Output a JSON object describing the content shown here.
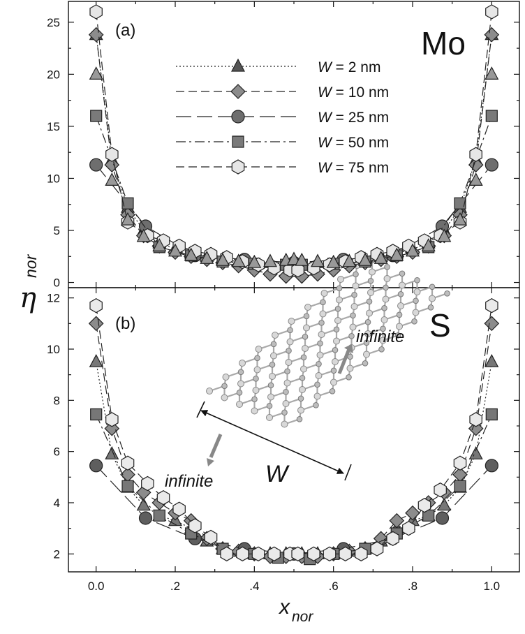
{
  "chart_data": [
    {
      "type": "line",
      "panel_label": "(a)",
      "annotation": "Mo",
      "xlabel_main": "x",
      "xlabel_sub": "nor",
      "ylabel_main": "η",
      "ylabel_sub": "nor",
      "xlim": [
        -0.07,
        1.07
      ],
      "ylim": [
        -0.5,
        27
      ],
      "x_ticks": [
        0.0,
        0.2,
        0.4,
        0.6,
        0.8,
        1.0
      ],
      "x_tick_labels": [
        "0.0",
        ".2",
        ".4",
        ".6",
        ".8",
        "1.0"
      ],
      "y_ticks": [
        0,
        5,
        10,
        15,
        20,
        25
      ],
      "y_tick_labels": [
        "0",
        "5",
        "10",
        "15",
        "20",
        "25"
      ],
      "legend_position": "top-center",
      "legend_var": "W",
      "series": [
        {
          "name": "W = 2   nm",
          "legend_eq": " = 2   nm",
          "marker": "triangle",
          "dash": "dotted",
          "fill": "#555555",
          "x": [
            0,
            0.04,
            0.08,
            0.12,
            0.16,
            0.2,
            0.24,
            0.28,
            0.32,
            0.36,
            0.4,
            0.44,
            0.48,
            0.5,
            0.52,
            0.56,
            0.6,
            0.64,
            0.68,
            0.72,
            0.76,
            0.8,
            0.84,
            0.88,
            0.92,
            0.96,
            1.0
          ],
          "y": [
            23.8,
            11.8,
            7.2,
            5.0,
            3.8,
            3.2,
            2.8,
            2.5,
            2.2,
            2.0,
            1.9,
            1.9,
            1.9,
            1.9,
            1.9,
            1.9,
            1.9,
            2.0,
            2.2,
            2.5,
            2.8,
            3.2,
            3.8,
            5.0,
            7.2,
            11.8,
            23.8
          ]
        },
        {
          "name": "W = 10 nm",
          "legend_eq": " = 10 nm",
          "marker": "diamond",
          "dash": "dash",
          "fill": "#8c8c8c",
          "x": [
            0,
            0.04,
            0.08,
            0.12,
            0.16,
            0.2,
            0.24,
            0.28,
            0.32,
            0.36,
            0.4,
            0.44,
            0.48,
            0.52,
            0.56,
            0.6,
            0.64,
            0.68,
            0.72,
            0.76,
            0.8,
            0.84,
            0.88,
            0.92,
            0.96,
            1.0
          ],
          "y": [
            23.8,
            11.3,
            6.5,
            4.5,
            3.5,
            2.9,
            2.5,
            2.2,
            1.9,
            1.6,
            1.2,
            0.8,
            0.6,
            0.6,
            0.8,
            1.2,
            1.6,
            1.9,
            2.2,
            2.5,
            2.9,
            3.5,
            4.5,
            6.5,
            11.3,
            23.8
          ]
        },
        {
          "name": "W = 25 nm",
          "legend_eq": " = 25 nm",
          "marker": "circle",
          "dash": "longdash",
          "fill": "#6e6e6e",
          "x": [
            0,
            0.125,
            0.25,
            0.375,
            0.5,
            0.625,
            0.75,
            0.875,
            1.0
          ],
          "y": [
            11.3,
            5.4,
            2.6,
            2.2,
            1.9,
            2.2,
            2.6,
            5.4,
            11.3
          ]
        },
        {
          "name": "W = 50 nm",
          "legend_eq": " = 50 nm",
          "marker": "square",
          "dash": "dashdot",
          "fill": "#7a7a7a",
          "x": [
            0,
            0.08,
            0.16,
            0.24,
            0.32,
            0.4,
            0.48,
            0.52,
            0.6,
            0.68,
            0.76,
            0.84,
            0.92,
            1.0
          ],
          "y": [
            16.0,
            7.6,
            3.4,
            2.6,
            2.0,
            1.8,
            1.7,
            1.7,
            1.8,
            2.0,
            2.6,
            3.4,
            7.6,
            16.0
          ]
        },
        {
          "name": "W = 75 nm",
          "legend_eq": " = 75 nm",
          "marker": "hexagon",
          "dash": "dash",
          "fill": "#e6e6e6",
          "x": [
            0,
            0.04,
            0.08,
            0.13,
            0.17,
            0.21,
            0.25,
            0.29,
            0.33,
            0.37,
            0.41,
            0.45,
            0.49,
            0.51,
            0.55,
            0.59,
            0.63,
            0.67,
            0.71,
            0.75,
            0.79,
            0.83,
            0.87,
            0.92,
            0.96,
            1.0
          ],
          "y": [
            26.0,
            12.3,
            5.8,
            4.5,
            4.0,
            3.5,
            3.0,
            2.7,
            2.4,
            2.0,
            1.7,
            1.4,
            1.2,
            1.2,
            1.4,
            1.7,
            2.0,
            2.4,
            2.7,
            3.0,
            3.5,
            4.0,
            4.5,
            5.8,
            12.3,
            26.0
          ]
        },
        {
          "name": "",
          "marker": "triangle",
          "dash": "none",
          "fill": "#999999",
          "x": [
            0,
            0.04,
            0.08,
            0.12,
            0.16,
            0.2,
            0.24,
            0.28,
            0.32,
            0.36,
            0.4,
            0.44,
            0.48,
            0.5,
            0.52,
            0.56,
            0.6,
            0.64,
            0.68,
            0.72,
            0.76,
            0.8,
            0.84,
            0.88,
            0.92,
            0.96,
            1.0
          ],
          "y": [
            20.0,
            9.8,
            6.0,
            4.4,
            3.5,
            3.0,
            2.6,
            2.3,
            2.1,
            2.0,
            1.9,
            2.0,
            2.1,
            2.2,
            2.1,
            2.0,
            1.9,
            2.0,
            2.1,
            2.3,
            2.6,
            3.0,
            3.5,
            4.4,
            6.0,
            9.8,
            20.0
          ]
        }
      ]
    },
    {
      "type": "line",
      "panel_label": "(b)",
      "annotation": "S",
      "xlim": [
        -0.07,
        1.07
      ],
      "ylim": [
        1.3,
        12.4
      ],
      "x_ticks": [
        0.0,
        0.2,
        0.4,
        0.6,
        0.8,
        1.0
      ],
      "x_tick_labels": [
        "0.0",
        ".2",
        ".4",
        ".6",
        ".8",
        "1.0"
      ],
      "y_ticks": [
        2,
        4,
        6,
        8,
        10,
        12
      ],
      "y_tick_labels": [
        "2",
        "4",
        "6",
        "8",
        "10",
        "12"
      ],
      "inset_labels": {
        "top": "infinite",
        "bottom": "infinite",
        "width": "W"
      },
      "series": [
        {
          "name": "W = 2   nm",
          "marker": "triangle",
          "dash": "dotted",
          "fill": "#777777",
          "x": [
            0,
            0.04,
            0.08,
            0.12,
            0.16,
            0.2,
            0.24,
            0.28,
            0.32,
            0.36,
            0.4,
            0.44,
            0.48,
            0.52,
            0.56,
            0.6,
            0.64,
            0.68,
            0.72,
            0.76,
            0.8,
            0.84,
            0.88,
            0.92,
            0.96,
            1.0
          ],
          "y": [
            9.5,
            5.9,
            4.6,
            3.9,
            3.5,
            3.3,
            3.0,
            2.5,
            2.2,
            2.1,
            2.0,
            2.0,
            2.0,
            2.0,
            2.0,
            2.0,
            2.1,
            2.2,
            2.5,
            3.0,
            3.3,
            3.5,
            3.9,
            4.6,
            5.9,
            9.5
          ]
        },
        {
          "name": "W = 10 nm",
          "marker": "diamond",
          "dash": "dash",
          "fill": "#8c8c8c",
          "x": [
            0,
            0.04,
            0.08,
            0.12,
            0.16,
            0.2,
            0.24,
            0.28,
            0.32,
            0.36,
            0.4,
            0.44,
            0.48,
            0.52,
            0.56,
            0.6,
            0.64,
            0.68,
            0.72,
            0.76,
            0.8,
            0.84,
            0.88,
            0.92,
            0.96,
            1.0
          ],
          "y": [
            11.0,
            6.9,
            5.1,
            4.4,
            4.0,
            3.6,
            3.3,
            2.6,
            2.2,
            2.1,
            2.0,
            1.9,
            1.9,
            1.9,
            1.9,
            2.0,
            2.1,
            2.2,
            2.6,
            3.3,
            3.6,
            4.0,
            4.4,
            5.1,
            6.9,
            11.0
          ]
        },
        {
          "name": "W = 25 nm",
          "marker": "circle",
          "dash": "longdash",
          "fill": "#5e5e5e",
          "x": [
            0,
            0.125,
            0.25,
            0.375,
            0.5,
            0.625,
            0.75,
            0.875,
            1.0
          ],
          "y": [
            5.45,
            3.4,
            2.6,
            2.2,
            2.0,
            2.2,
            2.6,
            3.4,
            5.45
          ]
        },
        {
          "name": "W = 50 nm",
          "marker": "square",
          "dash": "dashdot",
          "fill": "#777777",
          "x": [
            0,
            0.08,
            0.16,
            0.24,
            0.32,
            0.4,
            0.46,
            0.54,
            0.6,
            0.68,
            0.76,
            0.84,
            0.92,
            1.0
          ],
          "y": [
            7.45,
            4.65,
            3.5,
            2.8,
            2.2,
            2.0,
            1.85,
            1.8,
            2.0,
            2.2,
            2.8,
            3.5,
            4.65,
            7.45
          ]
        },
        {
          "name": "W = 75 nm",
          "marker": "hexagon",
          "dash": "dash",
          "fill": "#eaeaea",
          "x": [
            0,
            0.04,
            0.08,
            0.13,
            0.17,
            0.21,
            0.25,
            0.29,
            0.33,
            0.37,
            0.41,
            0.45,
            0.49,
            0.51,
            0.55,
            0.59,
            0.63,
            0.67,
            0.71,
            0.75,
            0.79,
            0.83,
            0.87,
            0.92,
            0.96,
            1.0
          ],
          "y": [
            11.7,
            7.25,
            5.55,
            4.75,
            4.2,
            3.75,
            3.1,
            2.65,
            2.0,
            2.0,
            2.0,
            2.0,
            2.0,
            2.0,
            2.0,
            2.0,
            2.0,
            2.0,
            2.2,
            2.6,
            3.0,
            3.9,
            4.5,
            5.55,
            7.25,
            11.7
          ]
        }
      ]
    }
  ]
}
